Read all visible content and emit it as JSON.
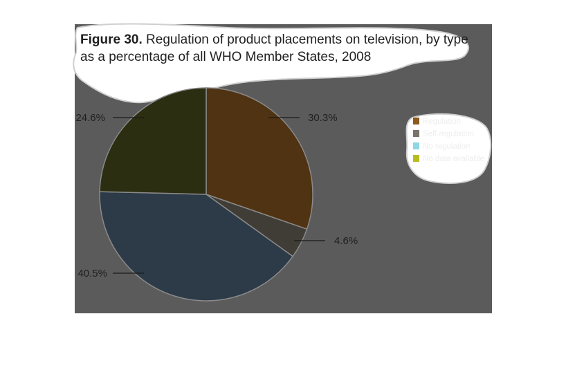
{
  "figure": {
    "title_bold": "Figure 30.",
    "title_line1": " Regulation of product placements on television, by type",
    "title_line2": "as a percentage of all WHO Member States, 2008"
  },
  "chart_data": {
    "type": "pie",
    "slices": [
      {
        "label": "Regulation",
        "value": 30.3,
        "value_label": "30.3%",
        "color": "#4f3312",
        "swatch": "#8a5a1e"
      },
      {
        "label": "Self-regulation",
        "value": 4.6,
        "value_label": "4.6%",
        "color": "#403d37",
        "swatch": "#7a746a"
      },
      {
        "label": "No regulation",
        "value": 40.5,
        "value_label": "40.5%",
        "color": "#2d3a47",
        "swatch": "#8fd6e6"
      },
      {
        "label": "No data available",
        "value": 24.6,
        "value_label": "24.6%",
        "color": "#2c2e11",
        "swatch": "#b7bd1f"
      }
    ],
    "legend_position": "right",
    "start": "12 o'clock, clockwise"
  },
  "colors": {
    "background_panel": "#5b5b5b",
    "label_text": "#1f1f1f",
    "legend_text": "#eeeeee",
    "leader_line": "#1a1a1a"
  }
}
